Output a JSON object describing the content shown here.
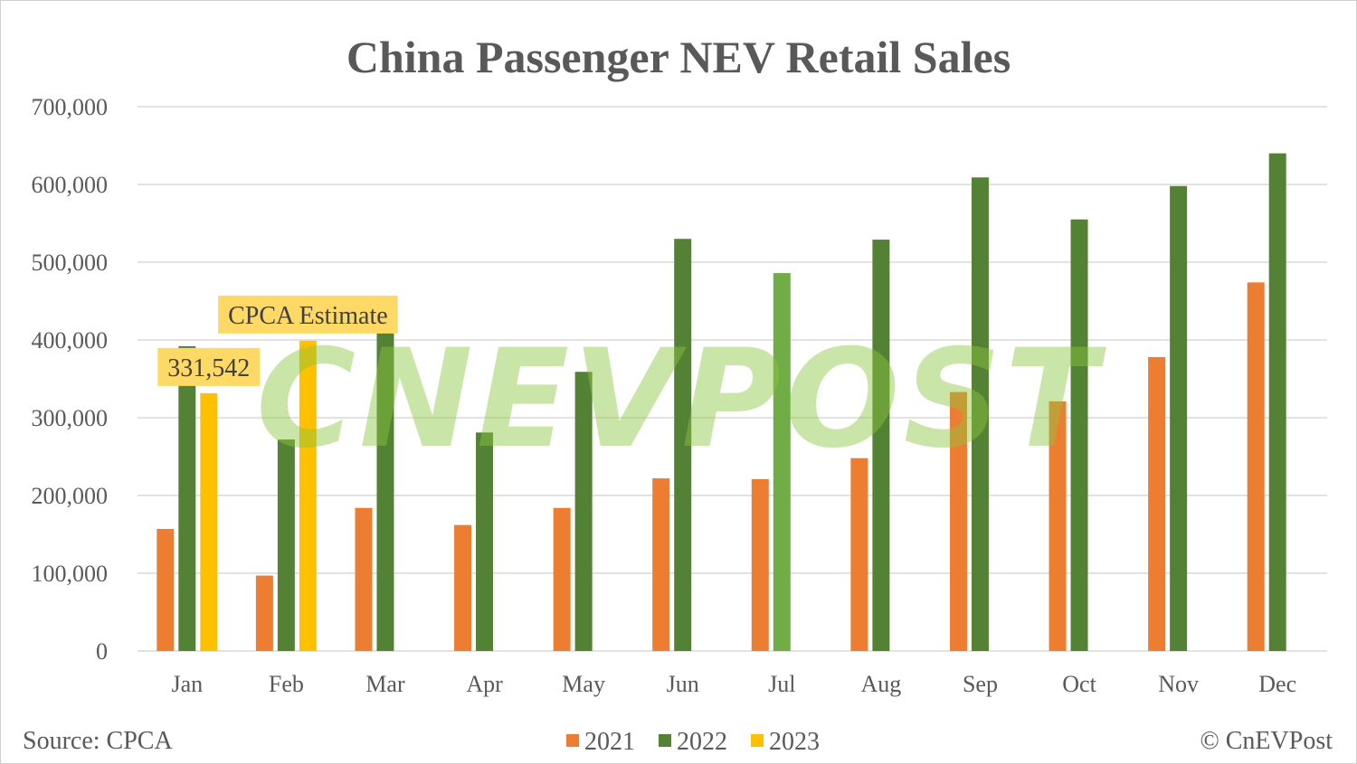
{
  "chart_data": {
    "type": "bar",
    "title": "China Passenger NEV Retail Sales",
    "categories": [
      "Jan",
      "Feb",
      "Mar",
      "Apr",
      "May",
      "Jun",
      "Jul",
      "Aug",
      "Sep",
      "Oct",
      "Nov",
      "Dec"
    ],
    "ylim": [
      0,
      700000
    ],
    "yticks": [
      0,
      100000,
      200000,
      300000,
      400000,
      500000,
      600000,
      700000
    ],
    "ytick_labels": [
      "0",
      "100,000",
      "200,000",
      "300,000",
      "400,000",
      "500,000",
      "600,000",
      "700,000"
    ],
    "grid": true,
    "legend_placement": "bottom",
    "series": [
      {
        "name": "2021",
        "color": "#ed7d31",
        "values": [
          157000,
          97000,
          184000,
          162000,
          184000,
          222000,
          221000,
          248000,
          333000,
          321000,
          378000,
          474000
        ]
      },
      {
        "name": "2022",
        "color": "#548235",
        "highlight_color": "#70ad47",
        "highlight_index": 6,
        "values": [
          392000,
          272000,
          445000,
          281000,
          359000,
          530000,
          486000,
          529000,
          609000,
          555000,
          598000,
          640000
        ]
      },
      {
        "name": "2023",
        "color": "#ffc000",
        "values": [
          331542,
          399000,
          null,
          null,
          null,
          null,
          null,
          null,
          null,
          null,
          null,
          null
        ]
      }
    ],
    "annotations": [
      {
        "text": "331,542",
        "category": "Jan",
        "series": "2023"
      },
      {
        "text": "CPCA Estimate",
        "category": "Feb",
        "series": "2023"
      }
    ],
    "annotation_bg": "#ffd966"
  },
  "footer": {
    "source": "Source: CPCA",
    "copyright": "© CnEVPost"
  },
  "watermark": "CNEVPOST"
}
